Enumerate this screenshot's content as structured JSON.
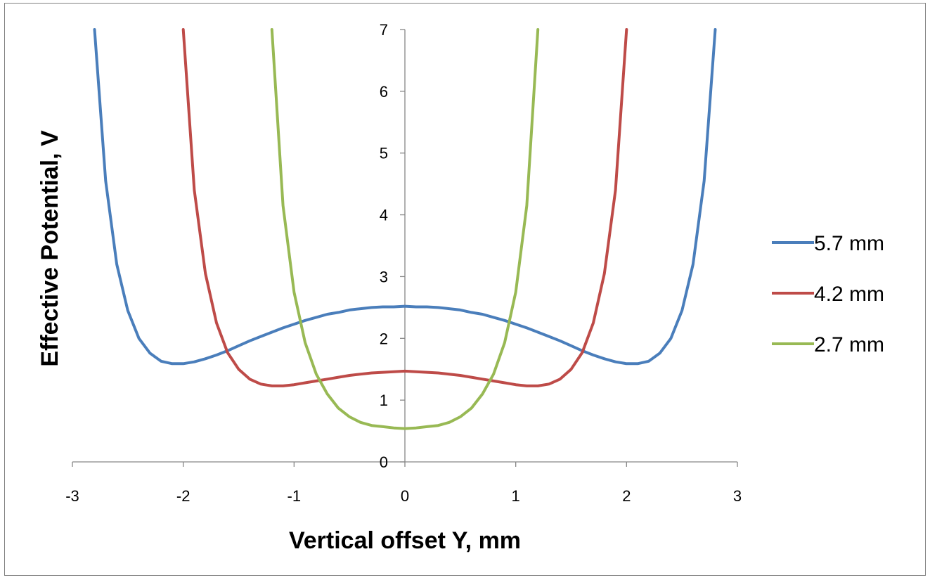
{
  "chart_data": {
    "type": "line",
    "title": "",
    "xlabel": "Vertical offset Y, mm",
    "ylabel": "Effective Potential, V",
    "xlim": [
      -3,
      3
    ],
    "ylim": [
      0,
      7
    ],
    "x_ticks": [
      "-3",
      "-2",
      "-1",
      "0",
      "1",
      "2",
      "3"
    ],
    "y_ticks": [
      "0",
      "1",
      "2",
      "3",
      "4",
      "5",
      "6",
      "7"
    ],
    "grid": false,
    "legend_position": "right",
    "series": [
      {
        "name": "5.7 mm",
        "color": "#4a7ebb",
        "x": [
          -2.8,
          -2.7,
          -2.6,
          -2.5,
          -2.4,
          -2.3,
          -2.2,
          -2.1,
          -2.0,
          -1.9,
          -1.8,
          -1.7,
          -1.6,
          -1.5,
          -1.4,
          -1.3,
          -1.2,
          -1.1,
          -1.0,
          -0.9,
          -0.8,
          -0.7,
          -0.6,
          -0.5,
          -0.4,
          -0.3,
          -0.2,
          -0.1,
          0.0,
          0.1,
          0.2,
          0.3,
          0.4,
          0.5,
          0.6,
          0.7,
          0.8,
          0.9,
          1.0,
          1.1,
          1.2,
          1.3,
          1.4,
          1.5,
          1.6,
          1.7,
          1.8,
          1.9,
          2.0,
          2.1,
          2.2,
          2.3,
          2.4,
          2.5,
          2.6,
          2.7,
          2.8
        ],
        "y": [
          7.0,
          4.55,
          3.2,
          2.45,
          2.0,
          1.76,
          1.63,
          1.59,
          1.59,
          1.62,
          1.67,
          1.73,
          1.8,
          1.88,
          1.96,
          2.03,
          2.1,
          2.17,
          2.23,
          2.29,
          2.34,
          2.39,
          2.42,
          2.46,
          2.48,
          2.5,
          2.51,
          2.51,
          2.52,
          2.51,
          2.51,
          2.5,
          2.48,
          2.46,
          2.42,
          2.39,
          2.34,
          2.29,
          2.23,
          2.17,
          2.1,
          2.03,
          1.96,
          1.88,
          1.8,
          1.73,
          1.67,
          1.62,
          1.59,
          1.59,
          1.63,
          1.76,
          2.0,
          2.45,
          3.2,
          4.55,
          7.0
        ]
      },
      {
        "name": "4.2 mm",
        "color": "#be4b48",
        "x": [
          -2.0,
          -1.9,
          -1.8,
          -1.7,
          -1.6,
          -1.5,
          -1.4,
          -1.3,
          -1.2,
          -1.1,
          -1.0,
          -0.9,
          -0.8,
          -0.7,
          -0.6,
          -0.5,
          -0.4,
          -0.3,
          -0.2,
          -0.1,
          0.0,
          0.1,
          0.2,
          0.3,
          0.4,
          0.5,
          0.6,
          0.7,
          0.8,
          0.9,
          1.0,
          1.1,
          1.2,
          1.3,
          1.4,
          1.5,
          1.6,
          1.7,
          1.8,
          1.9,
          2.0
        ],
        "y": [
          7.0,
          4.4,
          3.05,
          2.25,
          1.77,
          1.5,
          1.34,
          1.26,
          1.23,
          1.23,
          1.25,
          1.28,
          1.31,
          1.34,
          1.37,
          1.4,
          1.42,
          1.44,
          1.45,
          1.46,
          1.47,
          1.46,
          1.45,
          1.44,
          1.42,
          1.4,
          1.37,
          1.34,
          1.31,
          1.28,
          1.25,
          1.23,
          1.23,
          1.26,
          1.34,
          1.5,
          1.77,
          2.25,
          3.05,
          4.4,
          7.0
        ]
      },
      {
        "name": "2.7 mm",
        "color": "#98b954",
        "x": [
          -1.2,
          -1.1,
          -1.0,
          -0.9,
          -0.8,
          -0.7,
          -0.6,
          -0.5,
          -0.4,
          -0.3,
          -0.2,
          -0.1,
          0.0,
          0.1,
          0.2,
          0.3,
          0.4,
          0.5,
          0.6,
          0.7,
          0.8,
          0.9,
          1.0,
          1.1,
          1.2
        ],
        "y": [
          7.0,
          4.15,
          2.75,
          1.93,
          1.42,
          1.1,
          0.87,
          0.73,
          0.64,
          0.59,
          0.57,
          0.55,
          0.54,
          0.55,
          0.57,
          0.59,
          0.64,
          0.73,
          0.87,
          1.1,
          1.42,
          1.93,
          2.75,
          4.15,
          7.0
        ]
      }
    ]
  }
}
